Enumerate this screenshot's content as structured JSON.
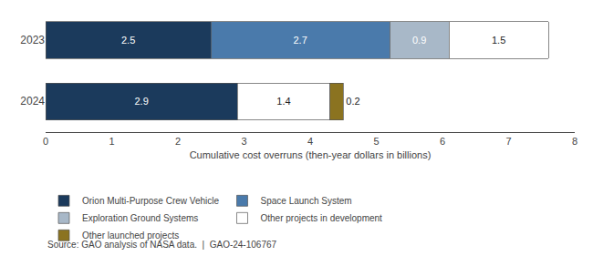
{
  "chart_data": {
    "type": "bar",
    "orientation": "horizontal",
    "stacked": true,
    "data_labels": true,
    "grid": false,
    "legend": "bottom",
    "categories": [
      "2023",
      "2024"
    ],
    "series": [
      {
        "name": "Orion Multi-Purpose Crew Vehicle",
        "color": "#1b3a5c",
        "values": [
          2.5,
          2.9
        ]
      },
      {
        "name": "Space Launch System",
        "color": "#4a7aab",
        "values": [
          2.7,
          null
        ]
      },
      {
        "name": "Exploration Ground Systems",
        "color": "#a8b8c8",
        "values": [
          0.9,
          null
        ]
      },
      {
        "name": "Other projects in development",
        "color": "#ffffff",
        "values": [
          1.5,
          1.4
        ]
      },
      {
        "name": "Other launched projects",
        "color": "#8b7320",
        "values": [
          null,
          0.2
        ]
      }
    ],
    "xlabel": "Cumulative cost overruns (then-year dollars in billions)",
    "xlim": [
      0,
      8
    ],
    "xticks": [
      0,
      1,
      2,
      3,
      4,
      5,
      6,
      7,
      8
    ],
    "annotations": [
      "Source: GAO analysis of NASA data.  |  GAO-24-106767"
    ]
  }
}
